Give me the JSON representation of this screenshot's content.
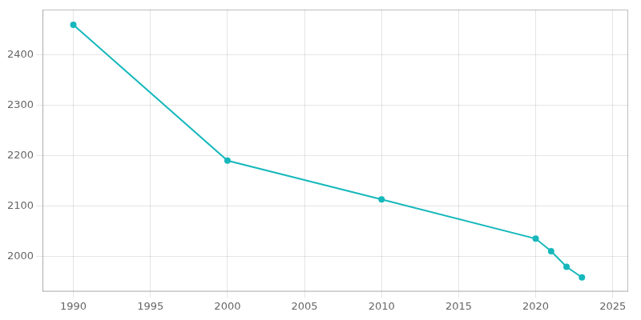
{
  "chart_data": {
    "type": "line",
    "x": [
      1990,
      2000,
      2010,
      2020,
      2021,
      2022,
      2023
    ],
    "values": [
      2460,
      2190,
      2113,
      2035,
      2010,
      1979,
      1958
    ],
    "color": "#17b8bc",
    "marker": "circle",
    "xlim": [
      1988,
      2026
    ],
    "ylim": [
      1930,
      2490
    ],
    "xticks": [
      1990,
      1995,
      2000,
      2005,
      2010,
      2015,
      2020,
      2025
    ],
    "yticks": [
      2000,
      2100,
      2200,
      2300,
      2400
    ],
    "grid": true
  }
}
